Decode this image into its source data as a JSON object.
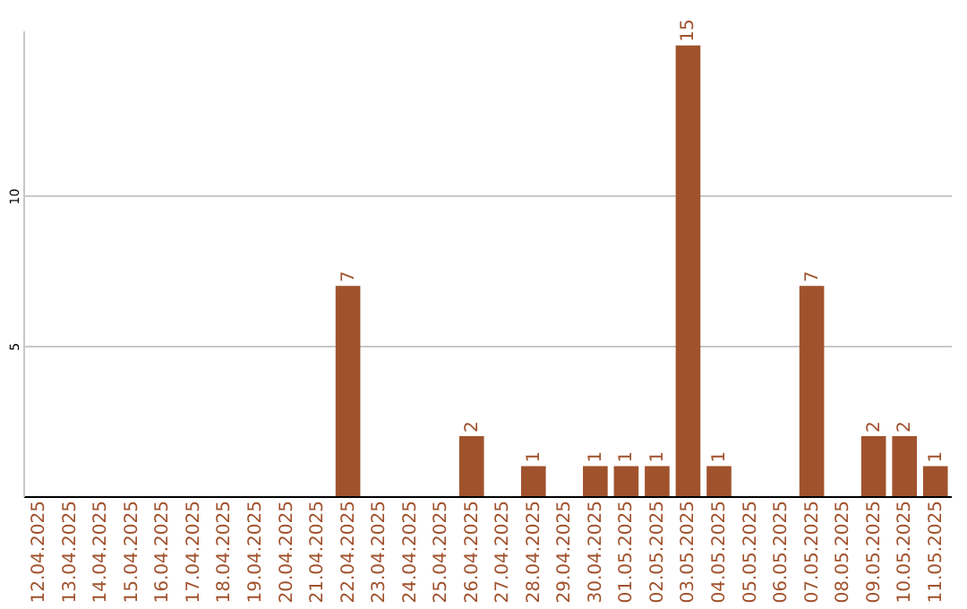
{
  "chart_data": {
    "type": "bar",
    "categories": [
      "12.04.2025",
      "13.04.2025",
      "14.04.2025",
      "15.04.2025",
      "16.04.2025",
      "17.04.2025",
      "18.04.2025",
      "19.04.2025",
      "20.04.2025",
      "21.04.2025",
      "22.04.2025",
      "23.04.2025",
      "24.04.2025",
      "25.04.2025",
      "26.04.2025",
      "27.04.2025",
      "28.04.2025",
      "29.04.2025",
      "30.04.2025",
      "01.05.2025",
      "02.05.2025",
      "03.05.2025",
      "04.05.2025",
      "05.05.2025",
      "06.05.2025",
      "07.05.2025",
      "08.05.2025",
      "09.05.2025",
      "10.05.2025",
      "11.05.2025"
    ],
    "values": [
      0,
      0,
      0,
      0,
      0,
      0,
      0,
      0,
      0,
      0,
      7,
      0,
      0,
      0,
      2,
      0,
      1,
      0,
      1,
      1,
      1,
      15,
      1,
      0,
      0,
      7,
      0,
      2,
      2,
      1
    ],
    "value_labels": [
      null,
      null,
      null,
      null,
      null,
      null,
      null,
      null,
      null,
      null,
      "7",
      null,
      null,
      null,
      "2",
      null,
      "1",
      null,
      "1",
      "1",
      "1",
      "15",
      "1",
      null,
      null,
      "7",
      null,
      "2",
      "2",
      "1"
    ],
    "color": "#a0522d",
    "ylim": [
      0,
      15.5
    ],
    "yticks": [
      5,
      10
    ],
    "grid": "y"
  }
}
